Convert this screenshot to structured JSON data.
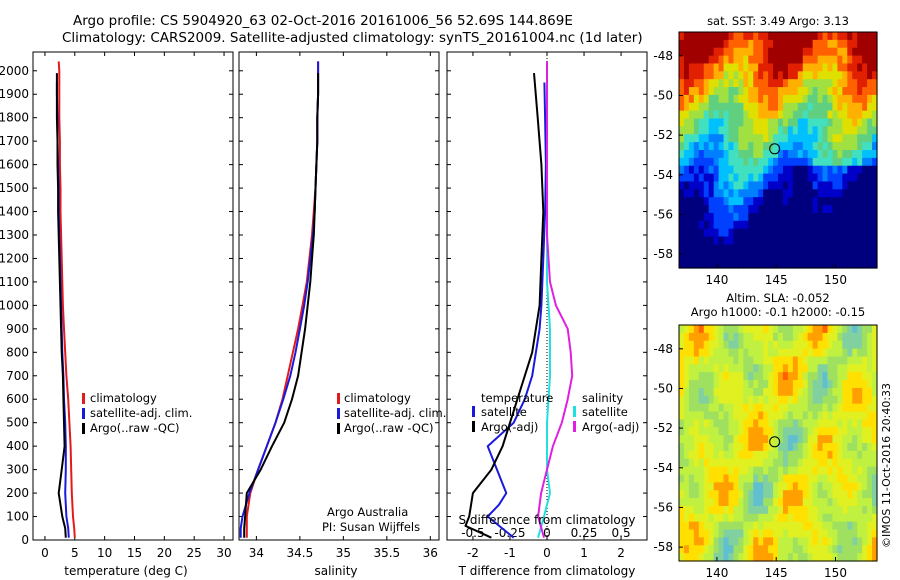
{
  "header": {
    "line1": "Argo profile: CS 5904920_63 02-Oct-2016 20161006_56 52.69S 144.869E",
    "line2": "Climatology: CARS2009. Satellite-adjusted climatology: synTS_20161004.nc (1d later)"
  },
  "colors": {
    "climatology": "#e31a1c",
    "satellite": "#1a1adc",
    "argo": "#000000",
    "sat_salinity": "#22e0e0",
    "argo_salinity": "#e020e0"
  },
  "chart_data": [
    {
      "type": "line",
      "xlabel": "temperature (deg C)",
      "ylabel": "",
      "xlim": [
        -2,
        31.5
      ],
      "ylim": [
        2080,
        0
      ],
      "xticks": [
        0,
        5,
        10,
        15,
        20,
        25,
        30
      ],
      "yticks": [
        0,
        100,
        200,
        300,
        400,
        500,
        600,
        700,
        800,
        900,
        1000,
        1100,
        1200,
        1300,
        1400,
        1500,
        1600,
        1700,
        1800,
        1900,
        2000
      ],
      "legend": {
        "position": "lower-center",
        "entries": [
          "climatology",
          "satellite-adj. clim.",
          "Argo(..raw -QC)"
        ]
      },
      "series": [
        {
          "name": "climatology",
          "color_key": "climatology",
          "points": [
            [
              5.0,
              10
            ],
            [
              4.9,
              50
            ],
            [
              4.7,
              100
            ],
            [
              4.5,
              200
            ],
            [
              4.4,
              300
            ],
            [
              4.3,
              400
            ],
            [
              4.1,
              500
            ],
            [
              3.9,
              600
            ],
            [
              3.6,
              700
            ],
            [
              3.4,
              800
            ],
            [
              3.2,
              900
            ],
            [
              3.0,
              1000
            ],
            [
              2.9,
              1100
            ],
            [
              2.8,
              1200
            ],
            [
              2.7,
              1300
            ],
            [
              2.6,
              1400
            ],
            [
              2.6,
              1500
            ],
            [
              2.5,
              1600
            ],
            [
              2.5,
              1700
            ],
            [
              2.4,
              1800
            ],
            [
              2.4,
              1900
            ],
            [
              2.4,
              2000
            ],
            [
              2.3,
              2040
            ]
          ]
        },
        {
          "name": "satellite-adj. clim.",
          "color_key": "satellite",
          "points": [
            [
              4.0,
              10
            ],
            [
              3.9,
              50
            ],
            [
              3.6,
              100
            ],
            [
              3.4,
              200
            ],
            [
              3.5,
              300
            ],
            [
              3.5,
              400
            ],
            [
              3.4,
              500
            ],
            [
              3.2,
              600
            ],
            [
              3.1,
              700
            ],
            [
              2.9,
              800
            ],
            [
              2.8,
              900
            ],
            [
              2.7,
              1000
            ],
            [
              2.6,
              1100
            ],
            [
              2.5,
              1200
            ],
            [
              2.4,
              1300
            ],
            [
              2.3,
              1400
            ],
            [
              2.3,
              1500
            ],
            [
              2.2,
              1600
            ],
            [
              2.1,
              1700
            ],
            [
              2.1,
              1800
            ],
            [
              2.0,
              1900
            ],
            [
              2.0,
              1950
            ]
          ]
        },
        {
          "name": "Argo(..raw -QC)",
          "color_key": "argo",
          "points": [
            [
              3.5,
              10
            ],
            [
              3.4,
              50
            ],
            [
              2.9,
              100
            ],
            [
              2.3,
              200
            ],
            [
              2.8,
              300
            ],
            [
              3.3,
              400
            ],
            [
              3.2,
              500
            ],
            [
              3.1,
              600
            ],
            [
              3.0,
              700
            ],
            [
              2.8,
              800
            ],
            [
              2.7,
              900
            ],
            [
              2.6,
              1000
            ],
            [
              2.5,
              1100
            ],
            [
              2.4,
              1200
            ],
            [
              2.3,
              1300
            ],
            [
              2.2,
              1400
            ],
            [
              2.2,
              1500
            ],
            [
              2.1,
              1600
            ],
            [
              2.1,
              1700
            ],
            [
              2.0,
              1800
            ],
            [
              2.0,
              1900
            ],
            [
              2.0,
              1990
            ]
          ]
        }
      ]
    },
    {
      "type": "line",
      "xlabel": "salinity",
      "ylabel": "",
      "xlim": [
        33.8,
        36.1
      ],
      "ylim": [
        2080,
        0
      ],
      "xticks": [
        34,
        34.5,
        35,
        35.5,
        36
      ],
      "legend": {
        "position": "lower-right",
        "entries": [
          "climatology",
          "satellite-adj. clim.",
          "Argo(..raw -QC)"
        ]
      },
      "annotations": [
        "Argo Australia",
        "PI: Susan Wijffels"
      ],
      "series": [
        {
          "name": "climatology",
          "color_key": "climatology",
          "points": [
            [
              33.89,
              10
            ],
            [
              33.89,
              50
            ],
            [
              33.89,
              100
            ],
            [
              33.93,
              200
            ],
            [
              34.02,
              300
            ],
            [
              34.12,
              400
            ],
            [
              34.22,
              500
            ],
            [
              34.3,
              600
            ],
            [
              34.36,
              700
            ],
            [
              34.42,
              800
            ],
            [
              34.48,
              900
            ],
            [
              34.53,
              1000
            ],
            [
              34.58,
              1100
            ],
            [
              34.61,
              1200
            ],
            [
              34.64,
              1300
            ],
            [
              34.66,
              1400
            ],
            [
              34.68,
              1500
            ],
            [
              34.69,
              1600
            ],
            [
              34.7,
              1700
            ],
            [
              34.7,
              1800
            ],
            [
              34.71,
              1900
            ],
            [
              34.71,
              2000
            ],
            [
              34.71,
              2040
            ]
          ]
        },
        {
          "name": "satellite-adj. clim.",
          "color_key": "satellite",
          "points": [
            [
              33.82,
              10
            ],
            [
              33.82,
              50
            ],
            [
              33.84,
              100
            ],
            [
              33.92,
              200
            ],
            [
              34.02,
              300
            ],
            [
              34.12,
              400
            ],
            [
              34.22,
              500
            ],
            [
              34.31,
              600
            ],
            [
              34.39,
              700
            ],
            [
              34.45,
              800
            ],
            [
              34.5,
              900
            ],
            [
              34.55,
              1000
            ],
            [
              34.59,
              1100
            ],
            [
              34.62,
              1200
            ],
            [
              34.65,
              1300
            ],
            [
              34.67,
              1400
            ],
            [
              34.68,
              1500
            ],
            [
              34.69,
              1600
            ],
            [
              34.7,
              1700
            ],
            [
              34.7,
              1800
            ],
            [
              34.71,
              1900
            ],
            [
              34.71,
              2000
            ],
            [
              34.71,
              2040
            ]
          ]
        },
        {
          "name": "Argo(..raw -QC)",
          "color_key": "argo",
          "points": [
            [
              33.86,
              10
            ],
            [
              33.86,
              50
            ],
            [
              33.87,
              100
            ],
            [
              33.89,
              200
            ],
            [
              34.05,
              300
            ],
            [
              34.18,
              400
            ],
            [
              34.32,
              500
            ],
            [
              34.41,
              600
            ],
            [
              34.48,
              700
            ],
            [
              34.52,
              800
            ],
            [
              34.56,
              900
            ],
            [
              34.59,
              1000
            ],
            [
              34.62,
              1100
            ],
            [
              34.64,
              1200
            ],
            [
              34.66,
              1300
            ],
            [
              34.67,
              1400
            ],
            [
              34.68,
              1500
            ],
            [
              34.69,
              1600
            ],
            [
              34.7,
              1700
            ],
            [
              34.7,
              1800
            ],
            [
              34.71,
              1900
            ],
            [
              34.71,
              1990
            ]
          ]
        }
      ]
    },
    {
      "type": "line",
      "xlabel": "T difference from climatology",
      "x2label": "S difference from climatology",
      "ylabel": "",
      "xlim": [
        -2.7,
        2.7
      ],
      "ylim": [
        2080,
        0
      ],
      "xticks": [
        -2,
        -1,
        0,
        1,
        2
      ],
      "x2ticks": [
        -0.5,
        -0.25,
        0,
        0.25,
        0.5
      ],
      "legend": {
        "position": "middle",
        "entries": [
          "temperature",
          "satellite",
          "Argo(-adj)",
          "salinity",
          "satellite",
          "Argo(-adj)"
        ]
      },
      "series": [
        {
          "name": "satellite",
          "color_key": "satellite",
          "points": [
            [
              -0.9,
              10
            ],
            [
              -1.6,
              100
            ],
            [
              -1.3,
              150
            ],
            [
              -1.1,
              200
            ],
            [
              -1.6,
              400
            ],
            [
              -0.9,
              500
            ],
            [
              -0.6,
              600
            ],
            [
              -0.4,
              700
            ],
            [
              -0.3,
              800
            ],
            [
              -0.2,
              900
            ],
            [
              -0.15,
              1000
            ],
            [
              -0.1,
              1200
            ],
            [
              -0.05,
              1400
            ],
            [
              -0.03,
              1600
            ],
            [
              -0.05,
              1800
            ],
            [
              -0.07,
              1950
            ]
          ]
        },
        {
          "name": "Argo(-adj)",
          "color_key": "argo",
          "points": [
            [
              -1.5,
              10
            ],
            [
              -2.2,
              60
            ],
            [
              -2.1,
              100
            ],
            [
              -2.0,
              200
            ],
            [
              -1.5,
              300
            ],
            [
              -1.2,
              400
            ],
            [
              -1.0,
              500
            ],
            [
              -0.8,
              600
            ],
            [
              -0.6,
              700
            ],
            [
              -0.4,
              800
            ],
            [
              -0.3,
              900
            ],
            [
              -0.2,
              1000
            ],
            [
              -0.15,
              1200
            ],
            [
              -0.1,
              1400
            ],
            [
              -0.15,
              1600
            ],
            [
              -0.25,
              1800
            ],
            [
              -0.35,
              1990
            ]
          ]
        },
        {
          "name": "satellite (S)",
          "color_key": "sat_salinity",
          "points": [
            [
              -0.06,
              10
            ],
            [
              -0.02,
              100
            ],
            [
              0.02,
              200
            ],
            [
              0.0,
              300
            ],
            [
              0.0,
              500
            ],
            [
              0.02,
              700
            ],
            [
              0.02,
              900
            ],
            [
              0.0,
              1100
            ],
            [
              0.0,
              1300
            ],
            [
              0.0,
              1500
            ],
            [
              0.0,
              1700
            ],
            [
              0.0,
              1900
            ],
            [
              0.0,
              2040
            ]
          ]
        },
        {
          "name": "Argo(-adj) (S)",
          "color_key": "argo_salinity",
          "points": [
            [
              -0.02,
              10
            ],
            [
              -0.06,
              100
            ],
            [
              -0.04,
              200
            ],
            [
              0.0,
              300
            ],
            [
              0.04,
              400
            ],
            [
              0.1,
              500
            ],
            [
              0.14,
              600
            ],
            [
              0.17,
              700
            ],
            [
              0.16,
              800
            ],
            [
              0.14,
              900
            ],
            [
              0.06,
              1000
            ],
            [
              0.02,
              1100
            ],
            [
              0.0,
              1300
            ],
            [
              0.0,
              1600
            ],
            [
              0.0,
              2040
            ]
          ]
        }
      ]
    },
    {
      "type": "heatmap",
      "title": "sat. SST: 3.49 Argo: 3.13",
      "xticks": [
        140,
        145,
        150
      ],
      "yticks": [
        -48,
        -50,
        -52,
        -54,
        -56,
        -58
      ],
      "xlim": [
        136.8,
        153.5
      ],
      "ylim": [
        -58.7,
        -46.8
      ],
      "marker": {
        "lon": 144.869,
        "lat": -52.69
      }
    },
    {
      "type": "heatmap",
      "title": "Altim. SLA: -0.052",
      "subtitle": "Argo h1000: -0.1 h2000: -0.15",
      "xticks": [
        140,
        145,
        150
      ],
      "yticks": [
        -48,
        -50,
        -52,
        -54,
        -56,
        -58
      ],
      "xlim": [
        136.8,
        153.5
      ],
      "ylim": [
        -58.7,
        -46.8
      ],
      "marker": {
        "lon": 144.869,
        "lat": -52.69
      }
    }
  ],
  "footer": {
    "credit": "©IMOS 11-Oct-2016 20:40:33"
  }
}
